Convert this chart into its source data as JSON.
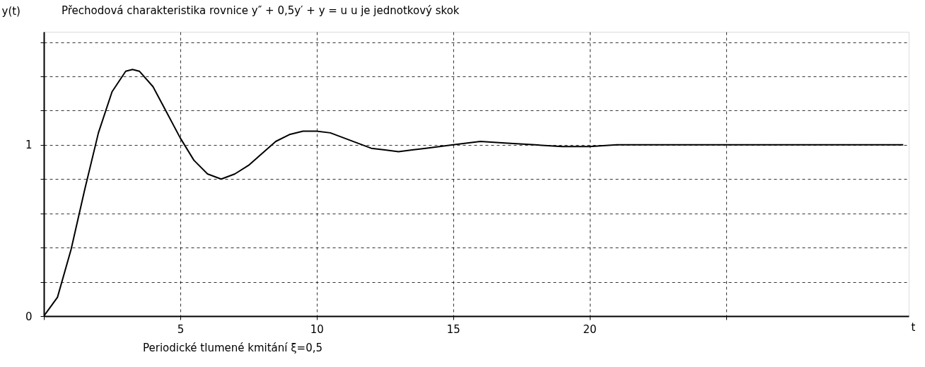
{
  "chart_data": {
    "type": "line",
    "title": "Přechodová charakteristika rovnice  y″ + 0,5y′ + y = u     u je jednotkový skok",
    "xlabel": "t",
    "ylabel": "y(t)",
    "annotations": [
      "Periodické tlumené kmitání   ξ=0,5"
    ],
    "x": [
      0,
      0.5,
      1,
      1.5,
      2,
      2.5,
      3,
      3.25,
      3.5,
      4,
      4.5,
      5,
      5.5,
      6,
      6.5,
      7,
      7.5,
      8,
      8.5,
      9,
      9.5,
      10,
      10.5,
      11,
      11.5,
      12,
      12.5,
      13,
      13.5,
      14,
      15,
      16,
      17,
      18,
      19,
      20,
      21,
      22,
      23,
      24,
      26,
      28,
      30,
      31.5
    ],
    "series": [
      {
        "color": "#000000",
        "values": [
          0,
          0.11,
          0.39,
          0.74,
          1.07,
          1.31,
          1.43,
          1.44,
          1.43,
          1.34,
          1.19,
          1.04,
          0.91,
          0.83,
          0.8,
          0.83,
          0.88,
          0.95,
          1.02,
          1.06,
          1.08,
          1.08,
          1.07,
          1.04,
          1.01,
          0.98,
          0.97,
          0.96,
          0.97,
          0.98,
          1.0,
          1.02,
          1.01,
          1.0,
          0.99,
          0.99,
          1.0,
          1.0,
          1.0,
          1.0,
          1.0,
          1.0,
          1.0,
          1.0
        ]
      }
    ],
    "xlim": [
      0,
      31.7
    ],
    "ylim": [
      0,
      1.66
    ],
    "xticks": [
      {
        "value": 0,
        "label": null
      },
      5,
      10,
      15,
      20,
      {
        "value": 25,
        "label": null
      }
    ],
    "yticks": [
      0,
      {
        "value": 0.2,
        "label": null
      },
      {
        "value": 0.4,
        "label": null
      },
      {
        "value": 0.6,
        "label": null
      },
      {
        "value": 0.8,
        "label": null
      },
      1,
      {
        "value": 1.2,
        "label": null
      },
      {
        "value": 1.4,
        "label": null
      },
      {
        "value": 1.6,
        "label": null
      }
    ],
    "grid": true,
    "marker": "none",
    "line_style": "solid"
  }
}
